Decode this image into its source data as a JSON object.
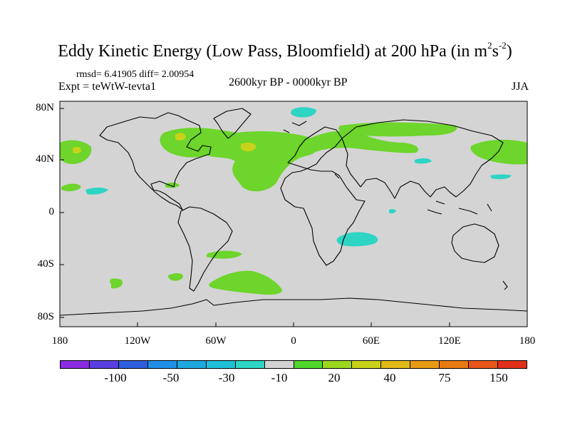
{
  "figure": {
    "title_main": "Eddy Kinetic Energy (Low Pass, Bloomfield) at 200 hPa (in m",
    "title_exp1": "2",
    "title_s": "s",
    "title_exp2": "-2",
    "title_close": ")",
    "stats": "rmsd= 6.41905 diff= 2.00954",
    "experiment": "Expt = teWtW-tevta1",
    "period": "2600kyr BP - 0000kyr BP",
    "season": "JJA"
  },
  "map": {
    "lat_labels": [
      "80N",
      "40N",
      "0",
      "40S",
      "80S"
    ],
    "lon_labels": [
      "180",
      "120W",
      "60W",
      "0",
      "60E",
      "120E",
      "180"
    ],
    "ocean_color": "#d4d4d4",
    "anomaly_regions": [
      {
        "label": "N. Atlantic storm track",
        "sign": "positive",
        "color": "#6dd52b"
      },
      {
        "label": "N. Pacific storm track",
        "sign": "positive",
        "color": "#6dd52b"
      },
      {
        "label": "Eurasian jet",
        "sign": "positive",
        "color": "#6dd52b"
      },
      {
        "label": "Southern Ocean",
        "sign": "positive",
        "color": "#6dd52b"
      },
      {
        "label": "Arctic",
        "sign": "negative",
        "color": "#2ed4c4"
      },
      {
        "label": "Mozambique channel",
        "sign": "negative",
        "color": "#2ed4c4"
      }
    ]
  },
  "colorbar": {
    "colors": [
      "#8a2be2",
      "#5a3fe0",
      "#2f5fe0",
      "#1f8fe8",
      "#1ea8e0",
      "#1fc0d8",
      "#2ed4c4",
      "#d2d2d2",
      "#4fd62a",
      "#9cd61f",
      "#c8d21a",
      "#e0b817",
      "#e89a14",
      "#e87a12",
      "#e8561a",
      "#e0301a"
    ],
    "labels": [
      "-100",
      "-50",
      "-30",
      "-10",
      "20",
      "40",
      "75",
      "150"
    ]
  }
}
